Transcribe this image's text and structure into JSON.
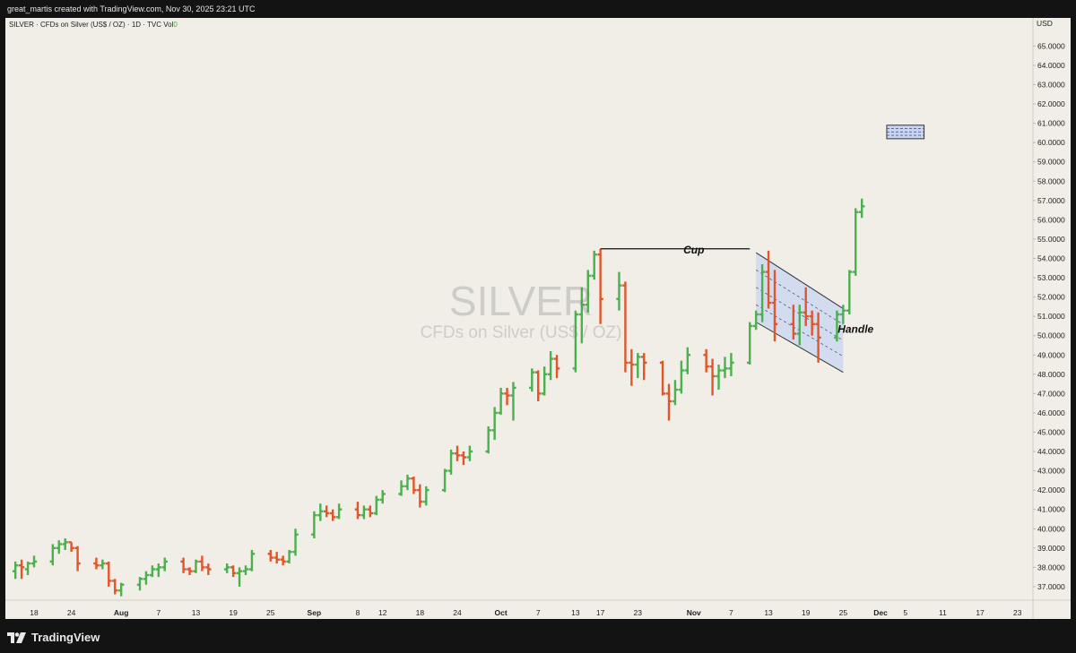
{
  "header": {
    "credit": "great_martis created with TradingView.com, Nov 30, 2025 23:21 UTC"
  },
  "legend": {
    "symbol": "SILVER",
    "description": "CFDs on Silver (US$ / OZ)",
    "interval": "1D",
    "exchange": "TVC",
    "vol_label": "Vol",
    "vol_value": "0"
  },
  "watermark": {
    "symbol": "SILVER",
    "description": "CFDs on Silver (US$ / OZ)"
  },
  "footer": {
    "brand": "TradingView"
  },
  "colors": {
    "up": "#4caf50",
    "down": "#e0562c",
    "background": "#f0eee6",
    "channel_fill": "#c9d4f2",
    "target_box": "#c9d4f2"
  },
  "chart_data": {
    "type": "ohlc-bar",
    "currency": "USD",
    "price_ticks": [
      "37.0000",
      "38.0000",
      "39.0000",
      "40.0000",
      "41.0000",
      "42.0000",
      "43.0000",
      "44.0000",
      "45.0000",
      "46.0000",
      "47.0000",
      "48.0000",
      "49.0000",
      "50.0000",
      "51.0000",
      "52.0000",
      "53.0000",
      "54.0000",
      "55.0000",
      "56.0000",
      "57.0000",
      "58.0000",
      "59.0000",
      "60.0000",
      "61.0000",
      "62.0000",
      "63.0000",
      "64.0000",
      "65.0000"
    ],
    "ylim": [
      36.3,
      65.9
    ],
    "x_ticks": [
      {
        "label": "18",
        "date": "2025-07-18"
      },
      {
        "label": "24",
        "date": "2025-07-24"
      },
      {
        "label": "Aug",
        "date": "2025-08-01",
        "bold": true
      },
      {
        "label": "7",
        "date": "2025-08-07"
      },
      {
        "label": "13",
        "date": "2025-08-13"
      },
      {
        "label": "19",
        "date": "2025-08-19"
      },
      {
        "label": "25",
        "date": "2025-08-25"
      },
      {
        "label": "Sep",
        "date": "2025-09-01",
        "bold": true
      },
      {
        "label": "8",
        "date": "2025-09-08"
      },
      {
        "label": "12",
        "date": "2025-09-12"
      },
      {
        "label": "18",
        "date": "2025-09-18"
      },
      {
        "label": "24",
        "date": "2025-09-24"
      },
      {
        "label": "Oct",
        "date": "2025-10-01",
        "bold": true
      },
      {
        "label": "7",
        "date": "2025-10-07"
      },
      {
        "label": "13",
        "date": "2025-10-13"
      },
      {
        "label": "17",
        "date": "2025-10-17"
      },
      {
        "label": "23",
        "date": "2025-10-23"
      },
      {
        "label": "Nov",
        "date": "2025-11-01",
        "bold": true
      },
      {
        "label": "7",
        "date": "2025-11-07"
      },
      {
        "label": "13",
        "date": "2025-11-13"
      },
      {
        "label": "19",
        "date": "2025-11-19"
      },
      {
        "label": "25",
        "date": "2025-11-25"
      },
      {
        "label": "Dec",
        "date": "2025-12-01",
        "bold": true
      },
      {
        "label": "5",
        "date": "2025-12-05"
      },
      {
        "label": "11",
        "date": "2025-12-11"
      },
      {
        "label": "17",
        "date": "2025-12-17"
      },
      {
        "label": "23",
        "date": "2025-12-23"
      }
    ],
    "bars": [
      {
        "date": "2025-07-15",
        "o": 37.8,
        "h": 38.3,
        "l": 37.4,
        "c": 38.1
      },
      {
        "date": "2025-07-16",
        "o": 38.1,
        "h": 38.4,
        "l": 37.4,
        "c": 38.0
      },
      {
        "date": "2025-07-17",
        "o": 37.9,
        "h": 38.3,
        "l": 37.6,
        "c": 38.2
      },
      {
        "date": "2025-07-18",
        "o": 38.2,
        "h": 38.6,
        "l": 38.0,
        "c": 38.3
      },
      {
        "date": "2025-07-21",
        "o": 38.3,
        "h": 39.2,
        "l": 38.1,
        "c": 39.0
      },
      {
        "date": "2025-07-22",
        "o": 39.0,
        "h": 39.4,
        "l": 38.7,
        "c": 39.2
      },
      {
        "date": "2025-07-23",
        "o": 39.2,
        "h": 39.5,
        "l": 38.9,
        "c": 39.3
      },
      {
        "date": "2025-07-24",
        "o": 39.3,
        "h": 39.3,
        "l": 38.8,
        "c": 39.0
      },
      {
        "date": "2025-07-25",
        "o": 39.0,
        "h": 39.1,
        "l": 37.8,
        "c": 38.2
      },
      {
        "date": "2025-07-28",
        "o": 38.2,
        "h": 38.5,
        "l": 37.9,
        "c": 38.1
      },
      {
        "date": "2025-07-29",
        "o": 38.1,
        "h": 38.4,
        "l": 37.9,
        "c": 38.2
      },
      {
        "date": "2025-07-30",
        "o": 38.2,
        "h": 38.3,
        "l": 37.0,
        "c": 37.3
      },
      {
        "date": "2025-07-31",
        "o": 37.3,
        "h": 37.4,
        "l": 36.6,
        "c": 36.8
      },
      {
        "date": "2025-08-01",
        "o": 36.8,
        "h": 37.2,
        "l": 36.5,
        "c": 37.1
      },
      {
        "date": "2025-08-04",
        "o": 37.1,
        "h": 37.5,
        "l": 36.8,
        "c": 37.4
      },
      {
        "date": "2025-08-05",
        "o": 37.4,
        "h": 37.8,
        "l": 37.1,
        "c": 37.6
      },
      {
        "date": "2025-08-06",
        "o": 37.6,
        "h": 38.1,
        "l": 37.5,
        "c": 37.9
      },
      {
        "date": "2025-08-07",
        "o": 37.9,
        "h": 38.2,
        "l": 37.5,
        "c": 38.0
      },
      {
        "date": "2025-08-08",
        "o": 38.0,
        "h": 38.5,
        "l": 37.8,
        "c": 38.3
      },
      {
        "date": "2025-08-11",
        "o": 38.3,
        "h": 38.5,
        "l": 37.7,
        "c": 37.9
      },
      {
        "date": "2025-08-12",
        "o": 37.9,
        "h": 38.0,
        "l": 37.6,
        "c": 37.8
      },
      {
        "date": "2025-08-13",
        "o": 37.8,
        "h": 38.4,
        "l": 37.7,
        "c": 38.3
      },
      {
        "date": "2025-08-14",
        "o": 38.3,
        "h": 38.6,
        "l": 37.8,
        "c": 38.0
      },
      {
        "date": "2025-08-15",
        "o": 38.0,
        "h": 38.2,
        "l": 37.6,
        "c": 37.9
      },
      {
        "date": "2025-08-18",
        "o": 37.9,
        "h": 38.2,
        "l": 37.7,
        "c": 38.0
      },
      {
        "date": "2025-08-19",
        "o": 38.0,
        "h": 38.1,
        "l": 37.5,
        "c": 37.7
      },
      {
        "date": "2025-08-20",
        "o": 37.7,
        "h": 38.0,
        "l": 37.0,
        "c": 37.8
      },
      {
        "date": "2025-08-21",
        "o": 37.8,
        "h": 38.1,
        "l": 37.6,
        "c": 37.9
      },
      {
        "date": "2025-08-22",
        "o": 37.9,
        "h": 38.9,
        "l": 37.8,
        "c": 38.7
      },
      {
        "date": "2025-08-25",
        "o": 38.7,
        "h": 38.9,
        "l": 38.3,
        "c": 38.5
      },
      {
        "date": "2025-08-26",
        "o": 38.5,
        "h": 38.8,
        "l": 38.2,
        "c": 38.4
      },
      {
        "date": "2025-08-27",
        "o": 38.4,
        "h": 38.6,
        "l": 38.1,
        "c": 38.3
      },
      {
        "date": "2025-08-28",
        "o": 38.3,
        "h": 38.9,
        "l": 38.2,
        "c": 38.8
      },
      {
        "date": "2025-08-29",
        "o": 38.8,
        "h": 40.0,
        "l": 38.6,
        "c": 39.7
      },
      {
        "date": "2025-09-01",
        "o": 39.7,
        "h": 40.9,
        "l": 39.5,
        "c": 40.7
      },
      {
        "date": "2025-09-02",
        "o": 40.7,
        "h": 41.3,
        "l": 40.4,
        "c": 40.9
      },
      {
        "date": "2025-09-03",
        "o": 40.9,
        "h": 41.2,
        "l": 40.6,
        "c": 40.8
      },
      {
        "date": "2025-09-04",
        "o": 40.8,
        "h": 41.0,
        "l": 40.4,
        "c": 40.6
      },
      {
        "date": "2025-09-05",
        "o": 40.6,
        "h": 41.3,
        "l": 40.5,
        "c": 41.0
      },
      {
        "date": "2025-09-08",
        "o": 41.0,
        "h": 41.4,
        "l": 40.5,
        "c": 40.7
      },
      {
        "date": "2025-09-09",
        "o": 40.7,
        "h": 41.2,
        "l": 40.5,
        "c": 41.0
      },
      {
        "date": "2025-09-10",
        "o": 41.0,
        "h": 41.2,
        "l": 40.6,
        "c": 40.8
      },
      {
        "date": "2025-09-11",
        "o": 40.8,
        "h": 41.7,
        "l": 40.7,
        "c": 41.5
      },
      {
        "date": "2025-09-12",
        "o": 41.5,
        "h": 42.0,
        "l": 41.3,
        "c": 41.8
      },
      {
        "date": "2025-09-15",
        "o": 41.8,
        "h": 42.5,
        "l": 41.7,
        "c": 42.2
      },
      {
        "date": "2025-09-16",
        "o": 42.2,
        "h": 42.8,
        "l": 42.0,
        "c": 42.6
      },
      {
        "date": "2025-09-17",
        "o": 42.6,
        "h": 42.7,
        "l": 41.8,
        "c": 42.0
      },
      {
        "date": "2025-09-18",
        "o": 42.0,
        "h": 42.3,
        "l": 41.1,
        "c": 41.4
      },
      {
        "date": "2025-09-19",
        "o": 41.4,
        "h": 42.2,
        "l": 41.2,
        "c": 42.0
      },
      {
        "date": "2025-09-22",
        "o": 42.0,
        "h": 43.1,
        "l": 41.9,
        "c": 43.0
      },
      {
        "date": "2025-09-23",
        "o": 43.0,
        "h": 44.1,
        "l": 42.8,
        "c": 43.9
      },
      {
        "date": "2025-09-24",
        "o": 43.9,
        "h": 44.3,
        "l": 43.5,
        "c": 43.8
      },
      {
        "date": "2025-09-25",
        "o": 43.8,
        "h": 44.0,
        "l": 43.3,
        "c": 43.7
      },
      {
        "date": "2025-09-26",
        "o": 43.7,
        "h": 44.3,
        "l": 43.5,
        "c": 44.0
      },
      {
        "date": "2025-09-29",
        "o": 44.0,
        "h": 45.3,
        "l": 43.9,
        "c": 45.1
      },
      {
        "date": "2025-09-30",
        "o": 45.1,
        "h": 46.3,
        "l": 44.6,
        "c": 46.0
      },
      {
        "date": "2025-10-01",
        "o": 46.0,
        "h": 47.3,
        "l": 45.9,
        "c": 47.0
      },
      {
        "date": "2025-10-02",
        "o": 47.0,
        "h": 47.3,
        "l": 46.4,
        "c": 46.9
      },
      {
        "date": "2025-10-03",
        "o": 46.9,
        "h": 47.6,
        "l": 45.6,
        "c": 47.3
      },
      {
        "date": "2025-10-06",
        "o": 47.3,
        "h": 48.3,
        "l": 47.1,
        "c": 48.1
      },
      {
        "date": "2025-10-07",
        "o": 48.1,
        "h": 48.2,
        "l": 46.6,
        "c": 47.0
      },
      {
        "date": "2025-10-08",
        "o": 47.0,
        "h": 48.4,
        "l": 46.9,
        "c": 48.0
      },
      {
        "date": "2025-10-09",
        "o": 48.0,
        "h": 49.2,
        "l": 47.7,
        "c": 48.8
      },
      {
        "date": "2025-10-10",
        "o": 48.8,
        "h": 49.0,
        "l": 47.8,
        "c": 48.3
      },
      {
        "date": "2025-10-13",
        "o": 48.3,
        "h": 51.3,
        "l": 48.1,
        "c": 51.1
      },
      {
        "date": "2025-10-14",
        "o": 51.1,
        "h": 52.5,
        "l": 49.6,
        "c": 51.6
      },
      {
        "date": "2025-10-15",
        "o": 51.6,
        "h": 53.4,
        "l": 51.2,
        "c": 53.1
      },
      {
        "date": "2025-10-16",
        "o": 53.1,
        "h": 54.4,
        "l": 52.9,
        "c": 54.2
      },
      {
        "date": "2025-10-17",
        "o": 54.2,
        "h": 54.5,
        "l": 50.6,
        "c": 51.9
      },
      {
        "date": "2025-10-20",
        "o": 51.9,
        "h": 53.3,
        "l": 51.3,
        "c": 52.6
      },
      {
        "date": "2025-10-21",
        "o": 52.6,
        "h": 52.8,
        "l": 48.1,
        "c": 48.6
      },
      {
        "date": "2025-10-22",
        "o": 48.6,
        "h": 49.3,
        "l": 47.4,
        "c": 48.5
      },
      {
        "date": "2025-10-23",
        "o": 48.5,
        "h": 49.1,
        "l": 47.8,
        "c": 48.9
      },
      {
        "date": "2025-10-24",
        "o": 48.9,
        "h": 49.1,
        "l": 47.7,
        "c": 48.6
      },
      {
        "date": "2025-10-27",
        "o": 48.6,
        "h": 48.7,
        "l": 46.9,
        "c": 47.0
      },
      {
        "date": "2025-10-28",
        "o": 47.0,
        "h": 47.5,
        "l": 45.6,
        "c": 46.6
      },
      {
        "date": "2025-10-29",
        "o": 46.6,
        "h": 47.7,
        "l": 46.4,
        "c": 47.2
      },
      {
        "date": "2025-10-30",
        "o": 47.2,
        "h": 48.7,
        "l": 47.0,
        "c": 48.2
      },
      {
        "date": "2025-10-31",
        "o": 48.2,
        "h": 49.4,
        "l": 48.0,
        "c": 49.0
      },
      {
        "date": "2025-11-03",
        "o": 49.0,
        "h": 49.3,
        "l": 48.1,
        "c": 48.4
      },
      {
        "date": "2025-11-04",
        "o": 48.4,
        "h": 48.8,
        "l": 46.9,
        "c": 47.9
      },
      {
        "date": "2025-11-05",
        "o": 47.9,
        "h": 48.5,
        "l": 47.2,
        "c": 48.2
      },
      {
        "date": "2025-11-06",
        "o": 48.2,
        "h": 48.9,
        "l": 47.8,
        "c": 48.3
      },
      {
        "date": "2025-11-07",
        "o": 48.3,
        "h": 49.1,
        "l": 47.9,
        "c": 48.6
      },
      {
        "date": "2025-11-10",
        "o": 48.6,
        "h": 50.7,
        "l": 48.5,
        "c": 50.5
      },
      {
        "date": "2025-11-11",
        "o": 50.5,
        "h": 51.3,
        "l": 50.3,
        "c": 51.1
      },
      {
        "date": "2025-11-12",
        "o": 51.1,
        "h": 53.7,
        "l": 50.7,
        "c": 53.3
      },
      {
        "date": "2025-11-13",
        "o": 53.3,
        "h": 54.4,
        "l": 51.4,
        "c": 51.7
      },
      {
        "date": "2025-11-14",
        "o": 51.7,
        "h": 53.4,
        "l": 49.7,
        "c": 50.6
      },
      {
        "date": "2025-11-17",
        "o": 50.6,
        "h": 51.6,
        "l": 49.8,
        "c": 50.1
      },
      {
        "date": "2025-11-18",
        "o": 50.1,
        "h": 51.6,
        "l": 49.5,
        "c": 51.2
      },
      {
        "date": "2025-11-19",
        "o": 51.2,
        "h": 52.5,
        "l": 50.5,
        "c": 51.0
      },
      {
        "date": "2025-11-20",
        "o": 51.0,
        "h": 51.3,
        "l": 50.0,
        "c": 50.6
      },
      {
        "date": "2025-11-21",
        "o": 50.6,
        "h": 51.2,
        "l": 48.6,
        "c": 49.9
      },
      {
        "date": "2025-11-24",
        "o": 49.9,
        "h": 51.3,
        "l": 49.7,
        "c": 51.1
      },
      {
        "date": "2025-11-25",
        "o": 51.1,
        "h": 51.6,
        "l": 50.6,
        "c": 51.3
      },
      {
        "date": "2025-11-26",
        "o": 51.3,
        "h": 53.4,
        "l": 51.1,
        "c": 53.3
      },
      {
        "date": "2025-11-27",
        "o": 53.3,
        "h": 56.6,
        "l": 53.1,
        "c": 56.4
      },
      {
        "date": "2025-11-28",
        "o": 56.4,
        "h": 57.1,
        "l": 56.1,
        "c": 56.7
      }
    ],
    "annotations": [
      {
        "type": "text",
        "text": "Cup",
        "date": "2025-11-01",
        "price": 54.25
      },
      {
        "type": "text",
        "text": "Handle",
        "date": "2025-11-27",
        "price": 50.15
      },
      {
        "type": "hline",
        "label": "cup-rim",
        "from": "2025-10-17",
        "to": "2025-11-10",
        "price": 54.5
      },
      {
        "type": "channel",
        "from": "2025-11-11",
        "to": "2025-11-25",
        "upper": [
          54.3,
          51.4
        ],
        "lower": [
          50.7,
          48.1
        ]
      },
      {
        "type": "target-box",
        "from": "2025-12-02",
        "to": "2025-12-08",
        "top": 60.9,
        "bottom": 60.2
      }
    ]
  }
}
